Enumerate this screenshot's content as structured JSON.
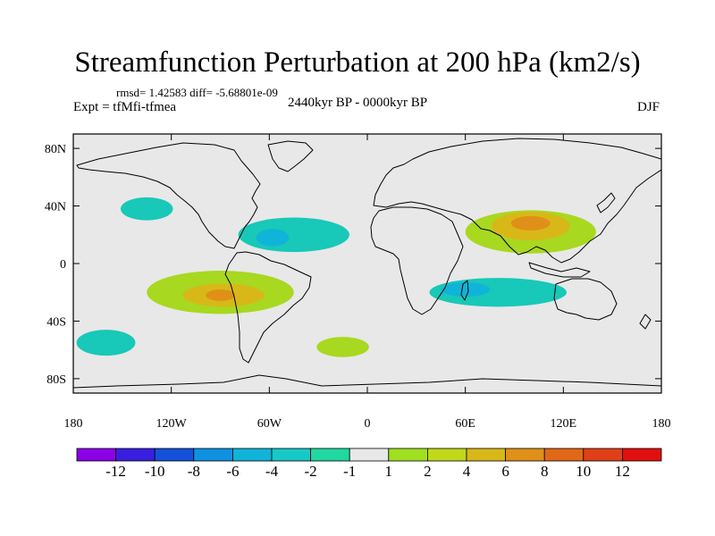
{
  "title": "Streamfunction Perturbation at 200 hPa (km2/s)",
  "stats_line": "rmsd= 1.42583 diff= -5.68801e-09",
  "experiment": "Expt = tfMfi-tfmea",
  "period": "2440kyr BP - 0000kyr BP",
  "season": "DJF",
  "map": {
    "lat_ticks": [
      {
        "lat": 80,
        "label": "80N"
      },
      {
        "lat": 40,
        "label": "40N"
      },
      {
        "lat": 0,
        "label": "0"
      },
      {
        "lat": -40,
        "label": "40S"
      },
      {
        "lat": -80,
        "label": "80S"
      }
    ],
    "lon_ticks": [
      {
        "lon": -180,
        "label": "180"
      },
      {
        "lon": -120,
        "label": "120W"
      },
      {
        "lon": -60,
        "label": "60W"
      },
      {
        "lon": 0,
        "label": "0"
      },
      {
        "lon": 60,
        "label": "60E"
      },
      {
        "lon": 120,
        "label": "120E"
      },
      {
        "lon": 180,
        "label": "180"
      }
    ],
    "background_color": "#e8e8e8",
    "anomaly_regions": [
      {
        "name": "north-atlantic-low",
        "color": "#18c8b8",
        "lon": -45,
        "lat": 20,
        "rx_deg": 34,
        "ry_deg": 12
      },
      {
        "name": "caribbean-low-core",
        "color": "#10b4d8",
        "lon": -58,
        "lat": 18,
        "rx_deg": 10,
        "ry_deg": 6
      },
      {
        "name": "east-pacific-low",
        "color": "#18c8b8",
        "lon": -135,
        "lat": 38,
        "rx_deg": 16,
        "ry_deg": 8
      },
      {
        "name": "south-america-high",
        "color": "#a8d820",
        "lon": -90,
        "lat": -20,
        "rx_deg": 45,
        "ry_deg": 15
      },
      {
        "name": "south-america-high-mid",
        "color": "#d8b818",
        "lon": -88,
        "lat": -22,
        "rx_deg": 25,
        "ry_deg": 8
      },
      {
        "name": "south-america-high-core",
        "color": "#e09018",
        "lon": -90,
        "lat": -22,
        "rx_deg": 9,
        "ry_deg": 4
      },
      {
        "name": "tibet-high",
        "color": "#a8d820",
        "lon": 100,
        "lat": 22,
        "rx_deg": 40,
        "ry_deg": 15
      },
      {
        "name": "tibet-high-mid",
        "color": "#d8b818",
        "lon": 100,
        "lat": 26,
        "rx_deg": 24,
        "ry_deg": 10
      },
      {
        "name": "tibet-high-core",
        "color": "#e09018",
        "lon": 100,
        "lat": 28,
        "rx_deg": 12,
        "ry_deg": 5
      },
      {
        "name": "indian-ocean-low",
        "color": "#18c8b8",
        "lon": 80,
        "lat": -20,
        "rx_deg": 42,
        "ry_deg": 10
      },
      {
        "name": "indian-ocean-low-core",
        "color": "#10b4d8",
        "lon": 60,
        "lat": -18,
        "rx_deg": 15,
        "ry_deg": 5
      },
      {
        "name": "south-pacific-low",
        "color": "#18c8b8",
        "lon": -160,
        "lat": -55,
        "rx_deg": 18,
        "ry_deg": 9
      },
      {
        "name": "south-atlantic-high",
        "color": "#a8d820",
        "lon": -15,
        "lat": -58,
        "rx_deg": 16,
        "ry_deg": 7
      }
    ]
  },
  "colorbar": {
    "colors": [
      "#8c00e6",
      "#3a1ee0",
      "#1450d8",
      "#1090e0",
      "#10b4d8",
      "#18c8c8",
      "#20d8a0",
      "#e8e8e8",
      "#a0e020",
      "#c0d818",
      "#d8b818",
      "#e09018",
      "#e06818",
      "#e04018",
      "#e01010"
    ],
    "labels": [
      "-12",
      "-10",
      "-8",
      "-6",
      "-4",
      "-2",
      "-1",
      "1",
      "2",
      "4",
      "6",
      "8",
      "10",
      "12"
    ]
  }
}
